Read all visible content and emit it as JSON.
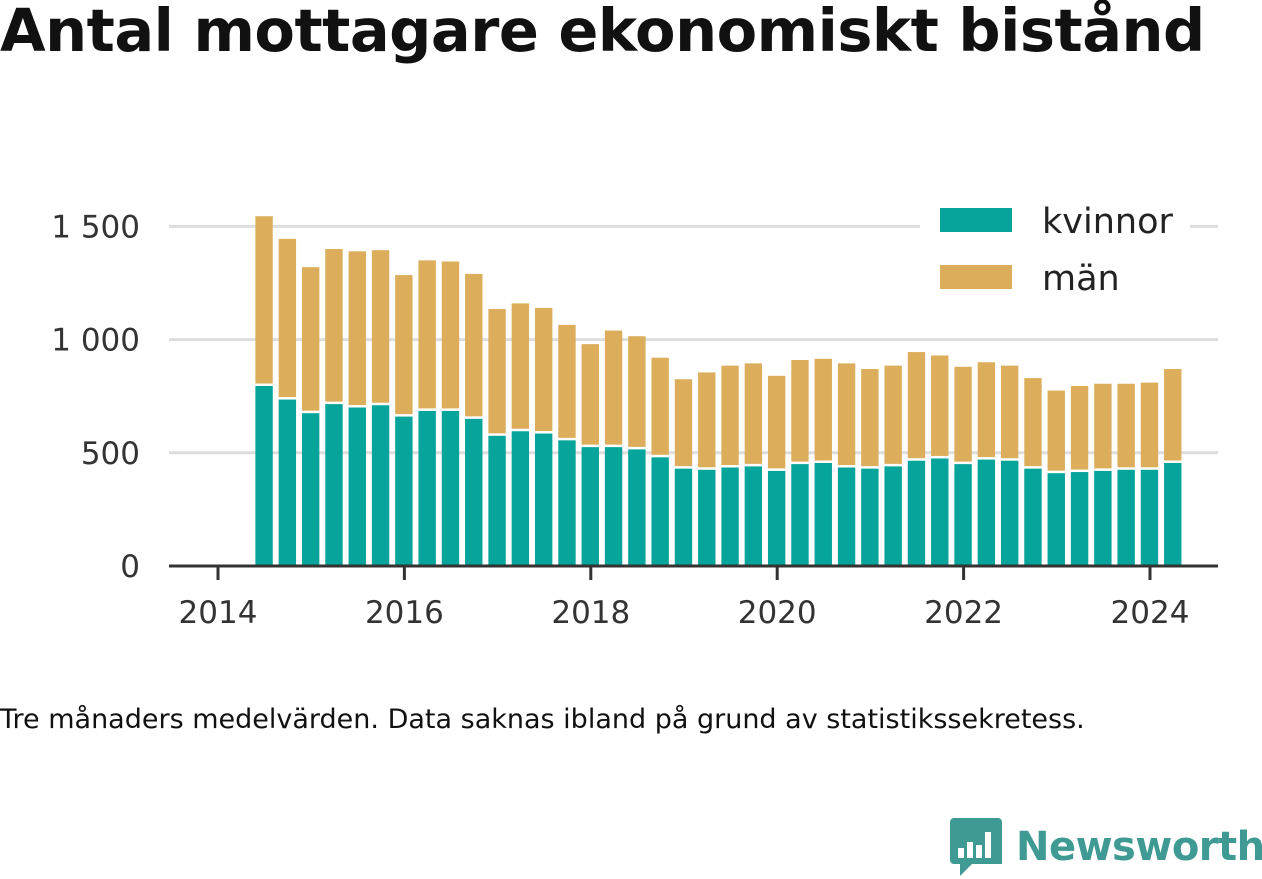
{
  "title": "Antal mottagare ekonomiskt bistånd",
  "note": "Tre månaders medelvärden. Data saknas ibland på grund av statistikssekretess.",
  "brand": {
    "name": "Newsworthy",
    "color": "#3e9a93",
    "icon": "bar-chart-badge-icon"
  },
  "chart_data": {
    "type": "bar",
    "stacked": true,
    "x_start": "2014-05",
    "x_step_months": 3,
    "x_tick_labels": [
      "2014",
      "2016",
      "2018",
      "2020",
      "2022",
      "2024"
    ],
    "x_ticks": [
      2014,
      2016,
      2018,
      2020,
      2022,
      2024
    ],
    "y_tick_labels": [
      "0",
      "500",
      "1 000",
      "1 500"
    ],
    "y_ticks": [
      0,
      500,
      1000,
      1500
    ],
    "ylim": [
      0,
      1600
    ],
    "grid": true,
    "legend_position": "top-right",
    "colors": {
      "kvinnor": "#06a49a",
      "man": "#dcae5c"
    },
    "series": [
      {
        "name": "kvinnor",
        "key": "kvinnor",
        "values": [
          795,
          735,
          675,
          715,
          700,
          710,
          660,
          685,
          685,
          650,
          575,
          595,
          585,
          555,
          525,
          525,
          515,
          480,
          430,
          425,
          435,
          440,
          420,
          450,
          455,
          435,
          430,
          440,
          465,
          475,
          450,
          470,
          465,
          430,
          410,
          415,
          420,
          425,
          425,
          455
        ]
      },
      {
        "name": "män",
        "key": "man",
        "values": [
          750,
          710,
          645,
          685,
          690,
          685,
          625,
          665,
          660,
          640,
          560,
          565,
          555,
          510,
          455,
          515,
          500,
          440,
          395,
          430,
          450,
          455,
          420,
          460,
          460,
          460,
          440,
          445,
          480,
          455,
          430,
          430,
          420,
          400,
          365,
          380,
          385,
          380,
          385,
          415
        ]
      }
    ]
  }
}
